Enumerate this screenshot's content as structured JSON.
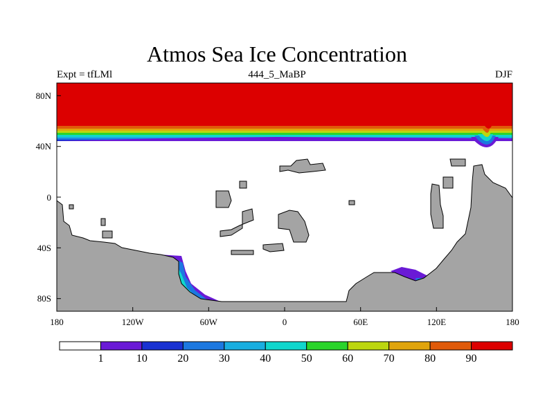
{
  "title": "Atmos Sea Ice Concentration",
  "left_string": "Expt = tfLMl",
  "center_string": "444_5_MaBP",
  "right_string": "DJF",
  "chart_data": {
    "type": "heatmap",
    "variable": "Sea ice concentration (%)",
    "projection": "cylindrical equidistant",
    "lon_range": [
      -180,
      180
    ],
    "lat_range": [
      -90,
      90
    ],
    "x_ticks": [
      "180",
      "120W",
      "60W",
      "0",
      "60E",
      "120E",
      "180"
    ],
    "x_tick_values": [
      -180,
      -120,
      -60,
      0,
      60,
      120,
      180
    ],
    "y_ticks": [
      "80N",
      "40N",
      "0",
      "40S",
      "80S"
    ],
    "y_tick_values": [
      80,
      40,
      0,
      -40,
      -80
    ],
    "colorbar": {
      "levels": [
        "1",
        "10",
        "20",
        "30",
        "40",
        "50",
        "60",
        "70",
        "80",
        "90"
      ],
      "colors": [
        "#ffffff",
        "#6a1ad6",
        "#1a32d2",
        "#1c78e0",
        "#19aee0",
        "#10d6cc",
        "#2bd42b",
        "#bcd60f",
        "#e0a40c",
        "#e05a0a",
        "#dc0000"
      ]
    },
    "land_color": "#a4a4a4",
    "observations": [
      "Northern high latitudes fully ice covered (90+%) down to ~50N",
      "Ice edge gradient ~50N-40N, dipping to ~40N near 160E",
      "Southern sea ice confined to coastal margins near 80W-60W and 80E-120E"
    ]
  }
}
